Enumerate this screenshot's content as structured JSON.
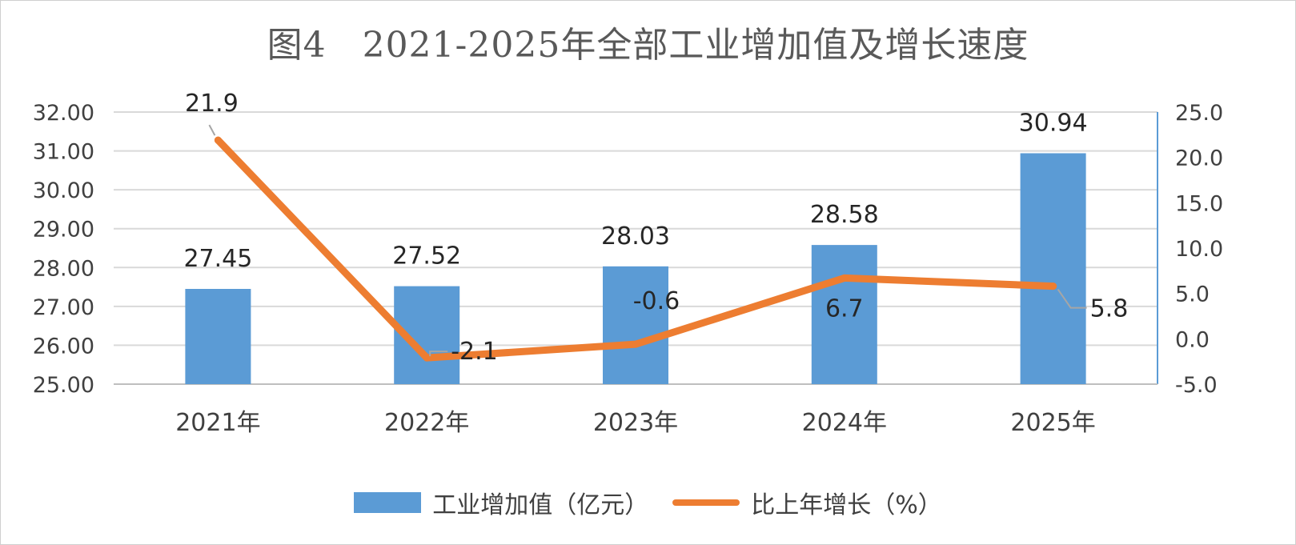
{
  "title": "图4　2021-2025年全部工业增加值及增长速度",
  "chart_data": {
    "type": "bar",
    "categories": [
      "2021年",
      "2022年",
      "2023年",
      "2024年",
      "2025年"
    ],
    "series": [
      {
        "name": "工业增加值（亿元）",
        "type": "bar",
        "axis": "left",
        "color": "#5b9bd5",
        "values": [
          27.45,
          27.52,
          28.03,
          28.58,
          30.94
        ],
        "labels": [
          "27.45",
          "27.52",
          "28.03",
          "28.58",
          "30.94"
        ]
      },
      {
        "name": "比上年增长（%）",
        "type": "line",
        "axis": "right",
        "color": "#ed7d31",
        "values": [
          21.9,
          -2.1,
          -0.6,
          6.7,
          5.8
        ],
        "labels": [
          "21.9",
          "-2.1",
          "-0.6",
          "6.7",
          "5.8"
        ]
      }
    ],
    "y_left": {
      "range": [
        25,
        32
      ],
      "ticks": [
        "25.00",
        "26.00",
        "27.00",
        "28.00",
        "29.00",
        "30.00",
        "31.00",
        "32.00"
      ]
    },
    "y_right": {
      "range": [
        -5,
        25
      ],
      "ticks": [
        "-5.0",
        "0.0",
        "5.0",
        "10.0",
        "15.0",
        "20.0",
        "25.0"
      ]
    },
    "grid": true,
    "legend_position": "bottom"
  }
}
